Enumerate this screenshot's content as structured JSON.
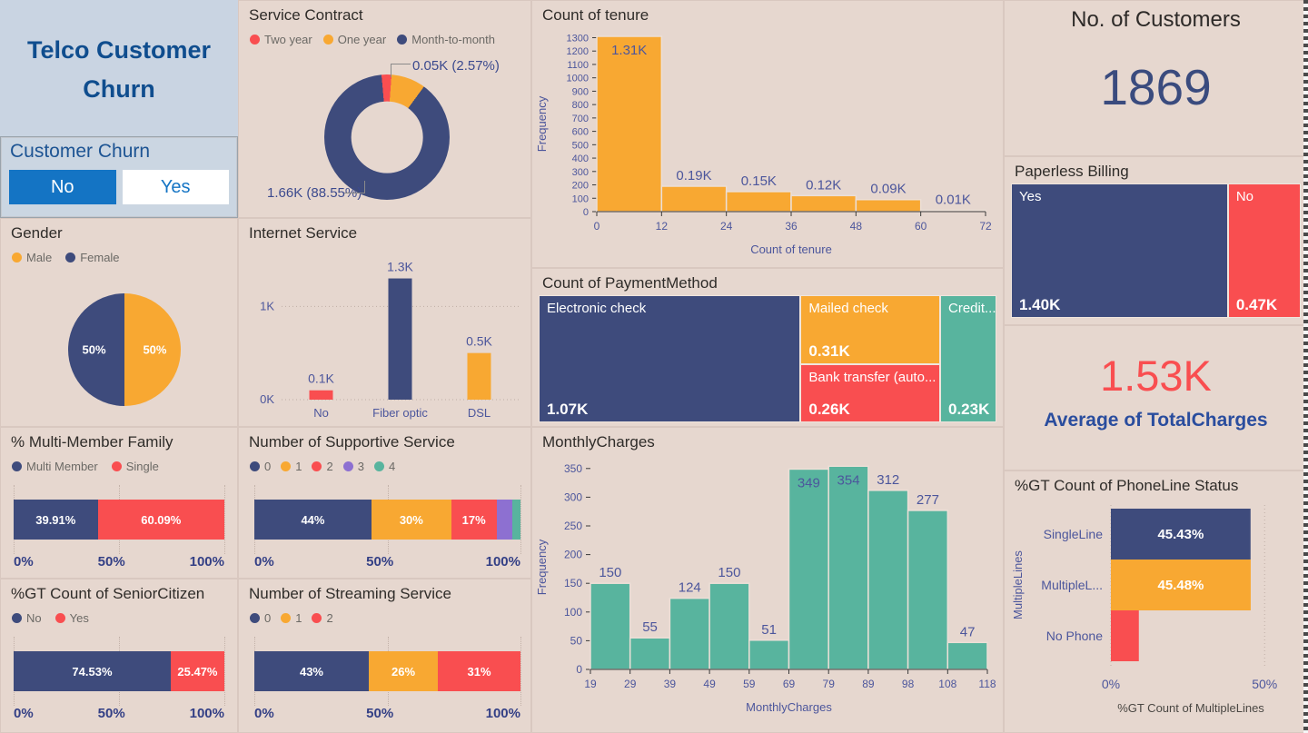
{
  "theme": {
    "navy": "#3e4b7c",
    "orange": "#f8a832",
    "red": "#f94e50",
    "teal": "#58b49e",
    "purple": "#8d70d1",
    "slicer_blue": "#1474c4",
    "title_blue": "#0f4d8e",
    "axis_text": "#4c569c",
    "panel_title": "#2f2c29",
    "legend_text": "#6b6965",
    "bg": "#e6d7cf",
    "header_bg": "#c9d4e2"
  },
  "header": {
    "title": "Telco Customer Churn"
  },
  "slicer": {
    "title": "Customer Churn",
    "options": [
      {
        "label": "No",
        "selected": true
      },
      {
        "label": "Yes",
        "selected": false
      }
    ]
  },
  "chart_data": [
    {
      "id": "service-contract",
      "type": "donut",
      "title": "Service Contract",
      "start": -5,
      "legend": [
        {
          "label": "Two year",
          "color": "#f94e50"
        },
        {
          "label": "One year",
          "color": "#f8a832"
        },
        {
          "label": "Month-to-month",
          "color": "#3e4b7c"
        }
      ],
      "slices": [
        {
          "label": "Two year",
          "value": 2.57,
          "color": "#f94e50"
        },
        {
          "label": "One year",
          "value": 8.88,
          "color": "#f8a832"
        },
        {
          "label": "Month-to-month",
          "value": 88.55,
          "color": "#3e4b7c"
        }
      ],
      "callouts": [
        {
          "text": "0.05K (2.57%)"
        },
        {
          "text": "1.66K (88.55%)"
        }
      ]
    },
    {
      "id": "gender",
      "type": "pie",
      "title": "Gender",
      "legend": [
        {
          "label": "Male",
          "color": "#f8a832"
        },
        {
          "label": "Female",
          "color": "#3e4b7c"
        }
      ],
      "slices": [
        {
          "label": "Male",
          "value": 50,
          "text": "50%",
          "color": "#f8a832"
        },
        {
          "label": "Female",
          "value": 50,
          "text": "50%",
          "color": "#3e4b7c"
        }
      ]
    },
    {
      "id": "internet-service",
      "type": "column",
      "title": "Internet Service",
      "categories": [
        "No",
        "Fiber optic",
        "DSL"
      ],
      "values": [
        0.1,
        1.3,
        0.5
      ],
      "labels": [
        "0.1K",
        "1.3K",
        "0.5K"
      ],
      "colors": [
        "#f94e50",
        "#3e4b7c",
        "#f8a832"
      ],
      "yticks": [
        {
          "v": 0,
          "label": "0K"
        },
        {
          "v": 1,
          "label": "1K"
        }
      ],
      "ymax": 1.5
    },
    {
      "id": "supportive-service",
      "type": "stacked100",
      "title": "Number of Supportive Service",
      "legend": [
        {
          "label": "0",
          "color": "#3e4b7c"
        },
        {
          "label": "1",
          "color": "#f8a832"
        },
        {
          "label": "2",
          "color": "#f94e50"
        },
        {
          "label": "3",
          "color": "#8d70d1"
        },
        {
          "label": "4",
          "color": "#58b49e"
        }
      ],
      "segments": [
        {
          "label": "0",
          "value": 44,
          "text": "44%",
          "color": "#3e4b7c"
        },
        {
          "label": "1",
          "value": 30,
          "text": "30%",
          "color": "#f8a832"
        },
        {
          "label": "2",
          "value": 17,
          "text": "17%",
          "color": "#f94e50"
        },
        {
          "label": "3",
          "value": 6,
          "text": "",
          "color": "#8d70d1"
        },
        {
          "label": "4",
          "value": 3,
          "text": "",
          "color": "#58b49e"
        }
      ],
      "axis": [
        "0%",
        "50%",
        "100%"
      ]
    },
    {
      "id": "streaming-service",
      "type": "stacked100",
      "title": "Number of Streaming Service",
      "legend": [
        {
          "label": "0",
          "color": "#3e4b7c"
        },
        {
          "label": "1",
          "color": "#f8a832"
        },
        {
          "label": "2",
          "color": "#f94e50"
        }
      ],
      "segments": [
        {
          "label": "0",
          "value": 43,
          "text": "43%",
          "color": "#3e4b7c"
        },
        {
          "label": "1",
          "value": 26,
          "text": "26%",
          "color": "#f8a832"
        },
        {
          "label": "2",
          "value": 31,
          "text": "31%",
          "color": "#f94e50"
        }
      ],
      "axis": [
        "0%",
        "50%",
        "100%"
      ]
    },
    {
      "id": "multi-member-family",
      "type": "stacked100",
      "title": "% Multi-Member Family",
      "legend": [
        {
          "label": "Multi Member",
          "color": "#3e4b7c"
        },
        {
          "label": "Single",
          "color": "#f94e50"
        }
      ],
      "segments": [
        {
          "label": "Multi Member",
          "value": 39.91,
          "text": "39.91%",
          "color": "#3e4b7c"
        },
        {
          "label": "Single",
          "value": 60.09,
          "text": "60.09%",
          "color": "#f94e50"
        }
      ],
      "axis": [
        "0%",
        "50%",
        "100%"
      ]
    },
    {
      "id": "senior-citizen",
      "type": "stacked100",
      "title": "%GT Count of SeniorCitizen",
      "legend": [
        {
          "label": "No",
          "color": "#3e4b7c"
        },
        {
          "label": "Yes",
          "color": "#f94e50"
        }
      ],
      "segments": [
        {
          "label": "No",
          "value": 74.53,
          "text": "74.53%",
          "color": "#3e4b7c"
        },
        {
          "label": "Yes",
          "value": 25.47,
          "text": "25.47%",
          "color": "#f94e50"
        }
      ],
      "axis": [
        "0%",
        "50%",
        "100%"
      ]
    },
    {
      "id": "tenure",
      "type": "histogram",
      "title": "Count of tenure",
      "xlabel": "Count of tenure",
      "ylabel": "Frequency",
      "bin_edges": [
        0,
        12,
        24,
        36,
        48,
        60,
        72
      ],
      "values": [
        1310,
        190,
        150,
        120,
        90,
        10
      ],
      "labels": [
        "1.31K",
        "0.19K",
        "0.15K",
        "0.12K",
        "0.09K",
        "0.01K"
      ],
      "color": "#f8a832",
      "ymax": 1310,
      "ytick_max": 1300,
      "ytick_step": 100
    },
    {
      "id": "payment-method",
      "type": "treemap",
      "title": "Count of PaymentMethod",
      "cells": [
        {
          "label": "Electronic check",
          "value": 1.07,
          "text": "1.07K",
          "color": "#3e4b7c"
        },
        {
          "label": "Mailed check",
          "value": 0.31,
          "text": "0.31K",
          "color": "#f8a832"
        },
        {
          "label": "Bank transfer (auto...",
          "value": 0.26,
          "text": "0.26K",
          "color": "#f94e50"
        },
        {
          "label": "Credit...",
          "value": 0.23,
          "text": "0.23K",
          "color": "#58b49e"
        }
      ]
    },
    {
      "id": "monthly-charges",
      "type": "histogram",
      "title": "MonthlyCharges",
      "xlabel": "MonthlyCharges",
      "ylabel": "Frequency",
      "bin_edges": [
        19,
        29,
        39,
        49,
        59,
        69,
        79,
        89,
        98,
        108,
        118
      ],
      "values": [
        150,
        55,
        124,
        150,
        51,
        349,
        354,
        312,
        277,
        47
      ],
      "labels": [
        "150",
        "55",
        "124",
        "150",
        "51",
        "349",
        "354",
        "312",
        "277",
        "47"
      ],
      "color": "#58b49e",
      "ymax": 356,
      "ytick_max": 350,
      "ytick_step": 50
    },
    {
      "id": "customers",
      "type": "card",
      "title": "No. of Customers",
      "value": "1869"
    },
    {
      "id": "paperless-billing",
      "type": "treemap2",
      "title": "Paperless Billing",
      "cells": [
        {
          "label": "Yes",
          "value": 1.4,
          "text": "1.40K",
          "color": "#3e4b7c"
        },
        {
          "label": "No",
          "value": 0.47,
          "text": "0.47K",
          "color": "#f94e50"
        }
      ]
    },
    {
      "id": "total-charges",
      "type": "card",
      "value": "1.53K",
      "label": "Average of TotalCharges"
    },
    {
      "id": "phoneline-status",
      "type": "barh",
      "title": "%GT Count of PhoneLine Status",
      "xlabel": "%GT Count of MultipleLines",
      "ylabel": "MultipleLines",
      "categories": [
        "SingleLine",
        "MultipleL...",
        "No Phone"
      ],
      "values": [
        45.43,
        45.48,
        9.09
      ],
      "texts": [
        "45.43%",
        "45.48%",
        ""
      ],
      "colors": [
        "#3e4b7c",
        "#f8a832",
        "#f94e50"
      ],
      "xticks": [
        {
          "v": 0,
          "label": "0%"
        },
        {
          "v": 50,
          "label": "50%"
        }
      ],
      "xmax": 52
    }
  ]
}
